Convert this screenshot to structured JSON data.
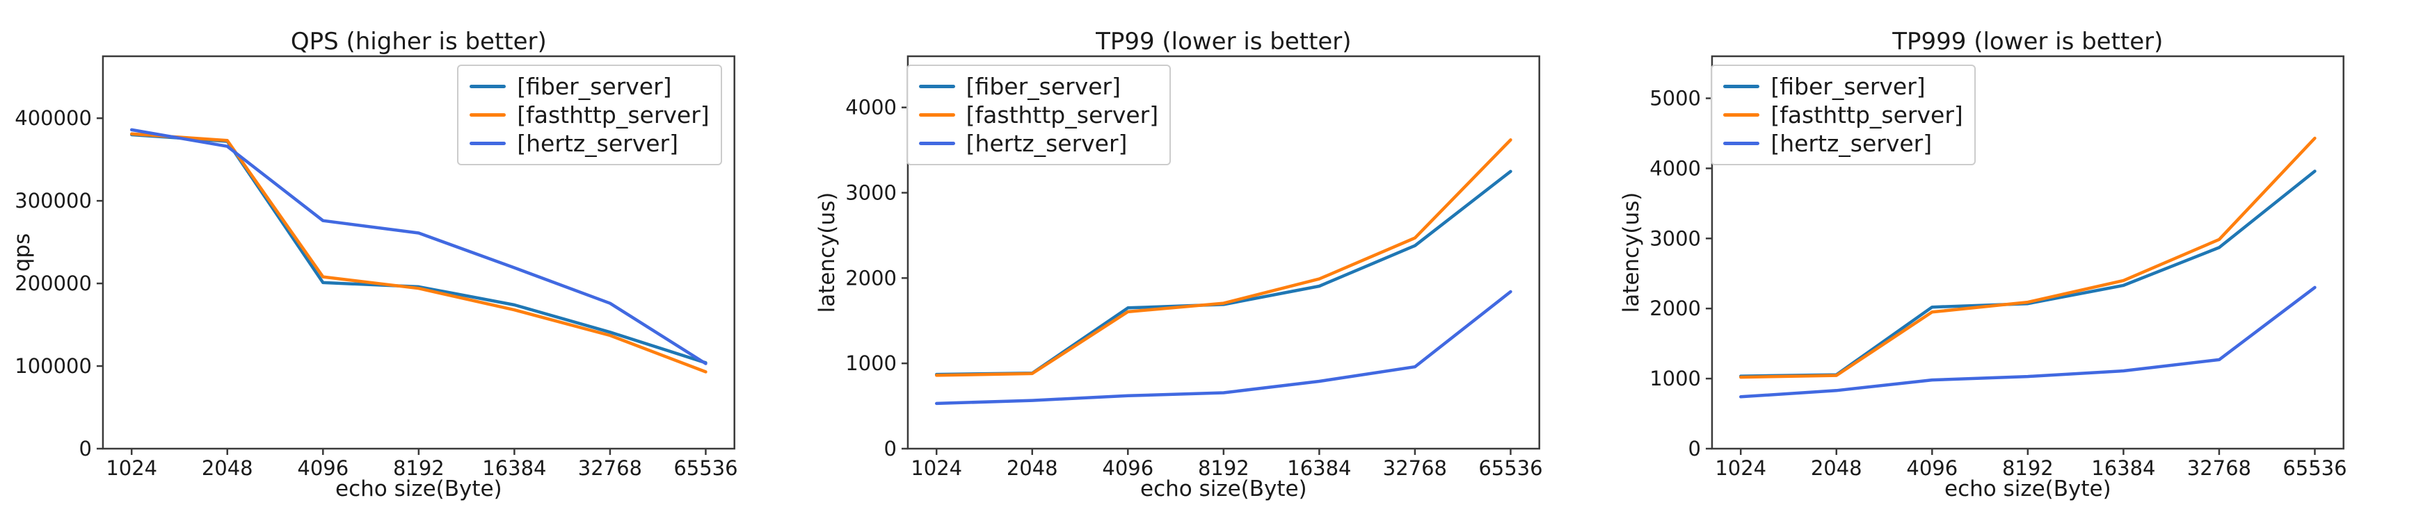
{
  "figure": {
    "background": "#ffffff",
    "spine_color": "#3a3a3a",
    "text_color": "#1a1a1a",
    "legend_border_color": "#cccccc"
  },
  "series_colors": {
    "fiber_server": "#1f77b4",
    "fasthttp_server": "#ff7f0e",
    "hertz_server": "#4169e1"
  },
  "chart_data": [
    {
      "type": "line",
      "title": "QPS (higher is better)",
      "xlabel": "echo size(Byte)",
      "ylabel": "qps",
      "categories": [
        "1024",
        "2048",
        "4096",
        "8192",
        "16384",
        "32768",
        "65536"
      ],
      "yticks": [
        0,
        100000,
        200000,
        300000,
        400000
      ],
      "ylim": [
        0,
        475000
      ],
      "grid": false,
      "legend_position": "upper right",
      "series": [
        {
          "name": "[fiber_server]",
          "color": "#1f77b4",
          "values": [
            380000,
            372000,
            201000,
            196000,
            174000,
            141000,
            104000
          ]
        },
        {
          "name": "[fasthttp_server]",
          "color": "#ff7f0e",
          "values": [
            381000,
            373000,
            208000,
            194000,
            168000,
            137000,
            93000
          ]
        },
        {
          "name": "[hertz_server]",
          "color": "#4169e1",
          "values": [
            386000,
            366000,
            276000,
            261000,
            219000,
            176000,
            103000
          ]
        }
      ]
    },
    {
      "type": "line",
      "title": "TP99 (lower is better)",
      "xlabel": "echo size(Byte)",
      "ylabel": "latency(us)",
      "categories": [
        "1024",
        "2048",
        "4096",
        "8192",
        "16384",
        "32768",
        "65536"
      ],
      "yticks": [
        0,
        1000,
        2000,
        3000,
        4000
      ],
      "ylim": [
        0,
        4600
      ],
      "grid": false,
      "legend_position": "upper left",
      "series": [
        {
          "name": "[fiber_server]",
          "color": "#1f77b4",
          "values": [
            870,
            885,
            1650,
            1690,
            1905,
            2380,
            3250
          ]
        },
        {
          "name": "[fasthttp_server]",
          "color": "#ff7f0e",
          "values": [
            860,
            880,
            1605,
            1705,
            1990,
            2470,
            3620
          ]
        },
        {
          "name": "[hertz_server]",
          "color": "#4169e1",
          "values": [
            530,
            565,
            620,
            655,
            790,
            960,
            1840
          ]
        }
      ]
    },
    {
      "type": "line",
      "title": "TP999 (lower is better)",
      "xlabel": "echo size(Byte)",
      "ylabel": "latency(us)",
      "categories": [
        "1024",
        "2048",
        "4096",
        "8192",
        "16384",
        "32768",
        "65536"
      ],
      "yticks": [
        0,
        1000,
        2000,
        3000,
        4000,
        5000
      ],
      "ylim": [
        0,
        5600
      ],
      "grid": false,
      "legend_position": "upper left",
      "series": [
        {
          "name": "[fiber_server]",
          "color": "#1f77b4",
          "values": [
            1035,
            1055,
            2020,
            2070,
            2330,
            2870,
            3960
          ]
        },
        {
          "name": "[fasthttp_server]",
          "color": "#ff7f0e",
          "values": [
            1020,
            1045,
            1950,
            2090,
            2400,
            2985,
            4430
          ]
        },
        {
          "name": "[hertz_server]",
          "color": "#4169e1",
          "values": [
            740,
            830,
            980,
            1030,
            1110,
            1270,
            2300
          ]
        }
      ]
    }
  ]
}
